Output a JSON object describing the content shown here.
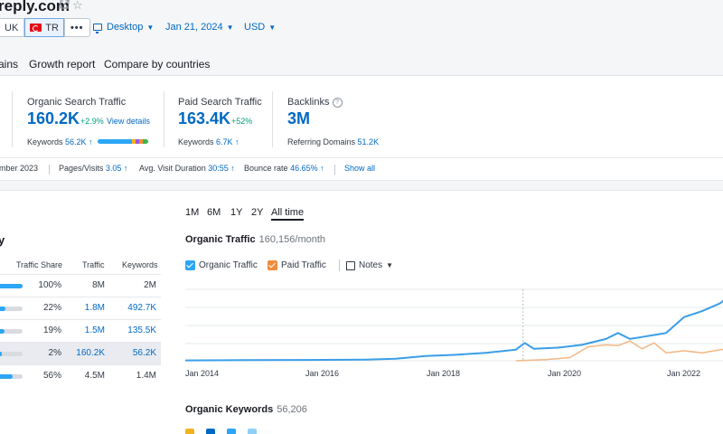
{
  "header": {
    "domain": "reply.com",
    "databases": [
      "UK",
      "TR"
    ],
    "more_label": "•••",
    "filters": {
      "device": "Desktop",
      "date": "Jan 21, 2024",
      "currency": "USD"
    },
    "tabs": [
      "ains",
      "Growth report",
      "Compare by countries"
    ]
  },
  "metrics": {
    "organic": {
      "label": "Organic Search Traffic",
      "value": "160.2K",
      "delta": "+2.9%",
      "link": "View details",
      "keywords_label": "Keywords",
      "keywords_value": "56.2K ↑"
    },
    "paid": {
      "label": "Paid Search Traffic",
      "value": "163.4K",
      "delta": "+52%",
      "keywords_label": "Keywords",
      "keywords_value": "6.7K ↑"
    },
    "backlinks": {
      "label": "Backlinks",
      "value": "3M",
      "referring_label": "Referring Domains",
      "referring_value": "51.2K"
    }
  },
  "stats": {
    "period": "mber 2023",
    "pages_label": "Pages/Visits",
    "pages_value": "3.05 ↑",
    "duration_label": "Avg. Visit Duration",
    "duration_value": "30:55 ↑",
    "bounce_label": "Bounce rate",
    "bounce_value": "46.65% ↑",
    "show_all": "Show all"
  },
  "country_table": {
    "title": "y",
    "headers": {
      "share": "Traffic Share",
      "traffic": "Traffic",
      "keywords": "Keywords"
    },
    "rows": [
      {
        "share": "100%",
        "share_fraction": 1.0,
        "traffic": "8M",
        "keywords": "2M",
        "linked": false
      },
      {
        "share": "22%",
        "share_fraction": 0.22,
        "traffic": "1.8M",
        "keywords": "492.7K",
        "linked": true
      },
      {
        "share": "19%",
        "share_fraction": 0.19,
        "traffic": "1.5M",
        "keywords": "135.5K",
        "linked": true
      },
      {
        "share": "2%",
        "share_fraction": 0.02,
        "traffic": "160.2K",
        "keywords": "56.2K",
        "linked": true
      },
      {
        "share": "56%",
        "share_fraction": 0.56,
        "traffic": "4.5M",
        "keywords": "1.4M",
        "linked": false
      }
    ]
  },
  "periods": [
    "1M",
    "6M",
    "1Y",
    "2Y",
    "All time"
  ],
  "selected_period": "All time",
  "organic_traffic": {
    "title": "Organic Traffic",
    "subtitle": "160,156/month",
    "legend_organic": "Organic Traffic",
    "legend_paid": "Paid Traffic",
    "notes_label": "Notes"
  },
  "organic_keywords": {
    "title": "Organic Keywords",
    "value": "56,206"
  },
  "colors": {
    "accent": "#0069c4",
    "organic_line": "#3a9ee8",
    "paid_line": "#f2b784",
    "paid_checkbox": "#f28b3c",
    "positive": "#009f81"
  },
  "chart_data": {
    "type": "line",
    "x_ticks": [
      "Jan 2014",
      "Jan 2016",
      "Jan 2018",
      "Jan 2020",
      "Jan 2022"
    ],
    "series": [
      {
        "name": "Organic Traffic",
        "x": [
          2013.0,
          2014.0,
          2015.0,
          2016.0,
          2017.0,
          2017.5,
          2018.0,
          2018.5,
          2019.0,
          2019.5,
          2019.65,
          2019.8,
          2020.2,
          2020.6,
          2021.0,
          2021.2,
          2021.4,
          2021.6,
          2021.8,
          2022.0,
          2022.3,
          2022.6,
          2022.9,
          2023.1,
          2023.3,
          2023.5
        ],
        "y": [
          1000,
          1000,
          1500,
          2000,
          3000,
          5000,
          12000,
          15000,
          20000,
          28000,
          45000,
          30000,
          33000,
          40000,
          55000,
          70000,
          55000,
          60000,
          65000,
          70000,
          110000,
          125000,
          145000,
          170000,
          160000,
          165000
        ]
      },
      {
        "name": "Paid Traffic",
        "x": [
          2019.5,
          2020.0,
          2020.4,
          2020.7,
          2021.0,
          2021.2,
          2021.4,
          2021.6,
          2021.8,
          2022.0,
          2022.3,
          2022.6,
          2023.0,
          2023.5
        ],
        "y": [
          0,
          3000,
          8000,
          35000,
          40000,
          38000,
          50000,
          30000,
          45000,
          20000,
          25000,
          20000,
          30000,
          40000
        ]
      }
    ],
    "grid": true,
    "annotation_line_x": 2019.62
  }
}
